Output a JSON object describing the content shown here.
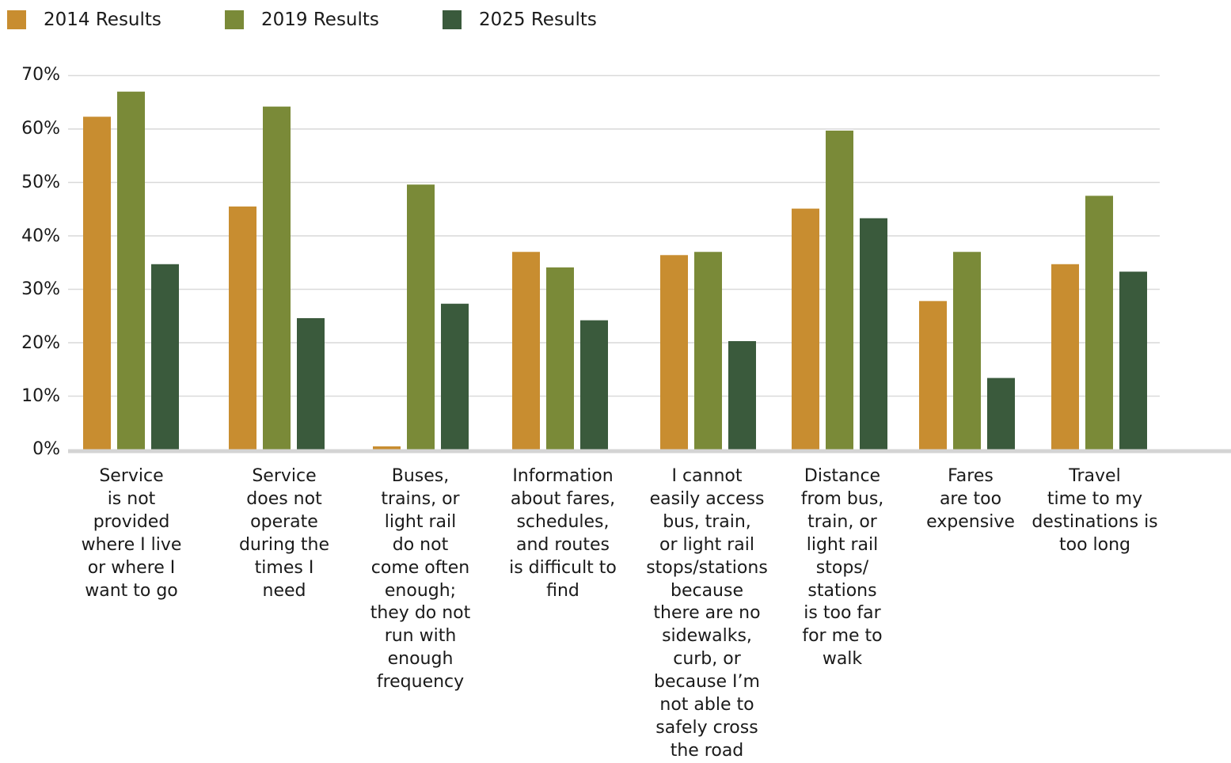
{
  "chart_data": {
    "type": "bar",
    "categories": [
      "Service\nis not\nprovided\nwhere I live\nor where I\nwant to go",
      "Service\ndoes not\noperate\nduring the\ntimes I\nneed",
      "Buses,\ntrains, or\nlight rail\ndo not\ncome often\nenough;\nthey do not\nrun with\nenough\nfrequency",
      "Information\nabout fares,\nschedules,\nand routes\nis difficult to\nfind",
      "I cannot\neasily access\nbus, train,\nor light rail\nstops/stations\nbecause\nthere are no\nsidewalks,\ncurb, or\nbecause I’m\nnot able to\nsafely cross\nthe road",
      "Distance\nfrom bus,\ntrain, or\nlight rail\nstops/\nstations\nis too far\nfor me to\nwalk",
      "Fares\nare too\nexpensive",
      "Travel\ntime to my\ndestinations is\ntoo long"
    ],
    "series": [
      {
        "name": "2014 Results",
        "color": "#c88d30",
        "values": [
          62.3,
          45.5,
          0.6,
          37.0,
          36.4,
          45.1,
          27.8,
          34.7
        ]
      },
      {
        "name": "2019 Results",
        "color": "#7a8a38",
        "values": [
          67.0,
          64.2,
          49.6,
          34.1,
          37.0,
          59.7,
          37.0,
          47.5
        ]
      },
      {
        "name": "2025 Results",
        "color": "#3a5a3c",
        "values": [
          34.7,
          24.6,
          27.3,
          24.2,
          20.3,
          43.3,
          13.4,
          33.3
        ]
      }
    ],
    "yticks": [
      "0%",
      "10%",
      "20%",
      "30%",
      "40%",
      "50%",
      "60%",
      "70%"
    ],
    "ylim": [
      0,
      70
    ],
    "grid": true,
    "legend_position": "top-left"
  }
}
